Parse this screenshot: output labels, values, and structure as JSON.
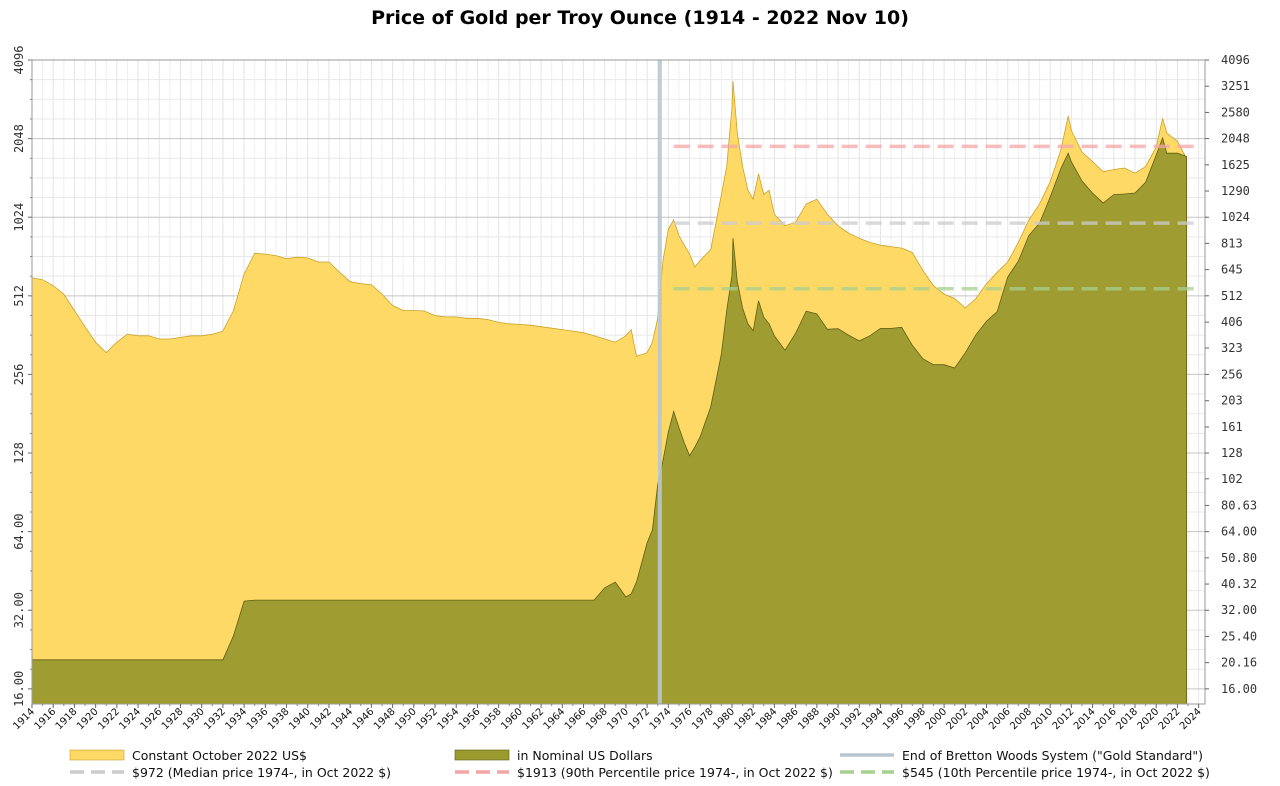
{
  "chart_data": {
    "type": "area",
    "title": "Price of Gold per Troy Ounce (1914 - 2022 Nov 10)",
    "xlabel": "",
    "ylabel": "",
    "xlim": [
      1914,
      2024.6
    ],
    "ylim": [
      14,
      4096
    ],
    "y_scale": "log2",
    "grid": true,
    "legend_position": "bottom",
    "x_ticks": [
      "1914",
      "1916",
      "1918",
      "1920",
      "1922",
      "1924",
      "1926",
      "1928",
      "1930",
      "1932",
      "1934",
      "1936",
      "1938",
      "1940",
      "1942",
      "1944",
      "1946",
      "1948",
      "1950",
      "1952",
      "1954",
      "1956",
      "1958",
      "1960",
      "1962",
      "1964",
      "1966",
      "1968",
      "1970",
      "1972",
      "1974",
      "1976",
      "1978",
      "1980",
      "1982",
      "1984",
      "1986",
      "1988",
      "1990",
      "1992",
      "1994",
      "1996",
      "1998",
      "2000",
      "2002",
      "2004",
      "2006",
      "2008",
      "2010",
      "2012",
      "2014",
      "2016",
      "2018",
      "2020",
      "2022",
      "2024"
    ],
    "y_ticks_left": [
      "16.00",
      "32.00",
      "64.00",
      "128",
      "256",
      "512",
      "1024",
      "2048",
      "4096"
    ],
    "y_ticks_right": [
      "16.00",
      "20.16",
      "25.40",
      "32.00",
      "40.32",
      "50.80",
      "64.00",
      "80.63",
      "102",
      "128",
      "161",
      "203",
      "256",
      "323",
      "406",
      "512",
      "645",
      "813",
      "1024",
      "1290",
      "1625",
      "2048",
      "2580",
      "3251",
      "4096"
    ],
    "series": [
      {
        "name": "Constant October 2022 US$",
        "color": "#ffd966",
        "x": [
          1914,
          1915,
          1916,
          1917,
          1918,
          1919,
          1920,
          1921,
          1922,
          1923,
          1924,
          1925,
          1926,
          1927,
          1928,
          1929,
          1930,
          1931,
          1932,
          1933,
          1934,
          1935,
          1936,
          1937,
          1938,
          1939,
          1940,
          1941,
          1942,
          1943,
          1944,
          1945,
          1946,
          1947,
          1948,
          1949,
          1950,
          1951,
          1952,
          1953,
          1954,
          1955,
          1956,
          1957,
          1958,
          1959,
          1960,
          1961,
          1962,
          1963,
          1964,
          1965,
          1966,
          1967,
          1968,
          1969,
          1970,
          1970.5,
          1971,
          1972,
          1972.5,
          1973,
          1973.5,
          1974,
          1974.5,
          1975,
          1975.5,
          1976,
          1976.5,
          1977,
          1978,
          1979,
          1979.5,
          1980,
          1980.1,
          1980.5,
          1981,
          1981.5,
          1982,
          1982.5,
          1983,
          1983.5,
          1984,
          1985,
          1986,
          1987,
          1988,
          1989,
          1990,
          1991,
          1992,
          1993,
          1994,
          1995,
          1996,
          1997,
          1998,
          1999,
          2000,
          2001,
          2002,
          2003,
          2004,
          2005,
          2006,
          2007,
          2008,
          2009,
          2010,
          2011,
          2011.7,
          2012,
          2013,
          2014,
          2015,
          2016,
          2017,
          2018,
          2019,
          2020,
          2020.6,
          2021,
          2022,
          2022.86
        ],
        "values": [
          600,
          590,
          560,
          520,
          450,
          390,
          340,
          310,
          340,
          365,
          360,
          360,
          350,
          350,
          355,
          360,
          360,
          365,
          375,
          450,
          620,
          745,
          740,
          730,
          710,
          720,
          715,
          690,
          690,
          630,
          580,
          570,
          565,
          520,
          470,
          450,
          450,
          448,
          430,
          425,
          425,
          420,
          420,
          415,
          405,
          400,
          398,
          395,
          390,
          385,
          380,
          375,
          370,
          360,
          350,
          340,
          360,
          380,
          300,
          310,
          340,
          420,
          700,
          920,
          1000,
          870,
          800,
          740,
          660,
          700,
          770,
          1250,
          1600,
          2700,
          3400,
          2150,
          1600,
          1300,
          1200,
          1500,
          1250,
          1300,
          1050,
          950,
          980,
          1150,
          1200,
          1050,
          950,
          890,
          850,
          820,
          800,
          790,
          780,
          750,
          640,
          560,
          520,
          500,
          460,
          500,
          570,
          630,
          690,
          820,
          1000,
          1150,
          1400,
          1850,
          2500,
          2200,
          1820,
          1670,
          1530,
          1560,
          1580,
          1510,
          1600,
          1900,
          2450,
          2150,
          2000,
          1720
        ]
      },
      {
        "name": "in Nominal US Dollars",
        "color": "#9a9a2f",
        "x": [
          1914,
          1915,
          1916,
          1917,
          1918,
          1919,
          1920,
          1921,
          1922,
          1923,
          1924,
          1925,
          1926,
          1927,
          1928,
          1929,
          1930,
          1931,
          1932,
          1933,
          1934,
          1935,
          1936,
          1937,
          1938,
          1939,
          1940,
          1941,
          1942,
          1943,
          1944,
          1945,
          1946,
          1947,
          1948,
          1949,
          1950,
          1951,
          1952,
          1953,
          1954,
          1955,
          1956,
          1957,
          1958,
          1959,
          1960,
          1961,
          1962,
          1963,
          1964,
          1965,
          1966,
          1967,
          1968,
          1969,
          1970,
          1970.5,
          1971,
          1972,
          1972.5,
          1973,
          1973.5,
          1974,
          1974.5,
          1975,
          1975.5,
          1976,
          1976.5,
          1977,
          1978,
          1979,
          1979.5,
          1980,
          1980.1,
          1980.5,
          1981,
          1981.5,
          1982,
          1982.5,
          1983,
          1983.5,
          1984,
          1985,
          1986,
          1987,
          1988,
          1989,
          1990,
          1991,
          1992,
          1993,
          1994,
          1995,
          1996,
          1997,
          1998,
          1999,
          2000,
          2001,
          2002,
          2003,
          2004,
          2005,
          2006,
          2007,
          2008,
          2009,
          2010,
          2011,
          2011.7,
          2012,
          2013,
          2014,
          2015,
          2016,
          2017,
          2018,
          2019,
          2020,
          2020.6,
          2021,
          2022,
          2022.86
        ],
        "values": [
          20.67,
          20.67,
          20.67,
          20.67,
          20.67,
          20.67,
          20.67,
          20.67,
          20.67,
          20.67,
          20.67,
          20.67,
          20.67,
          20.67,
          20.67,
          20.67,
          20.67,
          20.67,
          20.67,
          25.56,
          34.69,
          35,
          35,
          35,
          35,
          35,
          35,
          35,
          35,
          35,
          35,
          35,
          35,
          35,
          35,
          35,
          35,
          35,
          35,
          35,
          35,
          35,
          35,
          35,
          35,
          35,
          35,
          35,
          35,
          35,
          35,
          35,
          35,
          35,
          39,
          41,
          36,
          37,
          41,
          58,
          65,
          97,
          120,
          154,
          185,
          160,
          140,
          125,
          135,
          148,
          193,
          307,
          450,
          615,
          850,
          580,
          460,
          400,
          376,
          490,
          424,
          400,
          360,
          317,
          368,
          447,
          437,
          381,
          383,
          362,
          344,
          360,
          384,
          384,
          388,
          331,
          294,
          279,
          279,
          271,
          310,
          363,
          409,
          445,
          604,
          695,
          872,
          972,
          1224,
          1572,
          1800,
          1669,
          1411,
          1266,
          1160,
          1250,
          1257,
          1268,
          1393,
          1770,
          2060,
          1800,
          1800,
          1750
        ]
      }
    ],
    "reference_lines": [
      {
        "name": "End of Bretton Woods System (\"Gold Standard\")",
        "color": "#b9c6d2",
        "x": 1973.2
      },
      {
        "name": "$972 (Median price 1974-, in Oct 2022 $)",
        "color": "#cccccc",
        "y": 972,
        "x_from": 1974.5
      },
      {
        "name": "$1913 (90th Percentile price 1974-, in Oct 2022 $)",
        "color": "#f4a6a6",
        "y": 1913,
        "x_from": 1974.5
      },
      {
        "name": "$545 (10th Percentile price 1974-, in Oct 2022 $)",
        "color": "#a8cf8f",
        "y": 545,
        "x_from": 1974.5
      }
    ]
  }
}
